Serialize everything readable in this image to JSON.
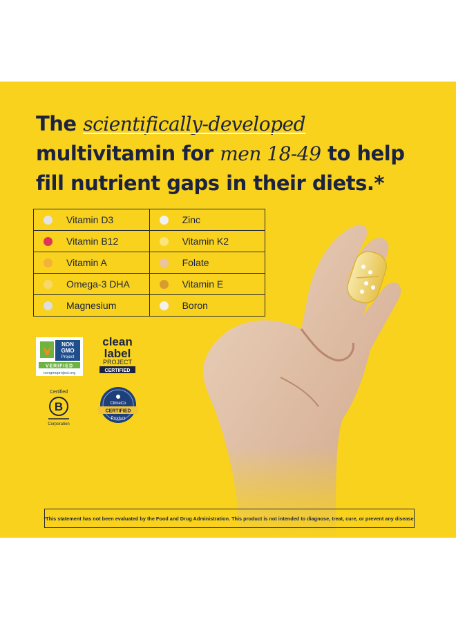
{
  "headline": {
    "line1_a": "The ",
    "line1_em": "scientifically-developed",
    "line2_a": "multivitamin for ",
    "line2_em": "men 18-49",
    "line2_b": " to help",
    "line3": "fill nutrient gaps in their diets.*"
  },
  "nutrients": [
    {
      "label": "Vitamin D3",
      "color": "#e4e4e8"
    },
    {
      "label": "Zinc",
      "color": "#f1f1f3"
    },
    {
      "label": "Vitamin B12",
      "color": "#e0355a"
    },
    {
      "label": "Vitamin K2",
      "color": "#fbe47a"
    },
    {
      "label": "Vitamin A",
      "color": "#f4b13c"
    },
    {
      "label": "Folate",
      "color": "#ebc2a4"
    },
    {
      "label": "Omega-3 DHA",
      "color": "#f9d86a"
    },
    {
      "label": "Vitamin E",
      "color": "#d89b2e"
    },
    {
      "label": "Magnesium",
      "color": "#dedee2"
    },
    {
      "label": "Boron",
      "color": "#f3f1ee"
    }
  ],
  "badges": {
    "nongmo": {
      "l1": "NON",
      "l2": "GMO",
      "l3": "Project",
      "l4": "VERIFIED",
      "l5": "nongmoproject.org"
    },
    "clean_label": {
      "l1": "clean",
      "l2": "label",
      "l3": "PROJECT",
      "l4": "CERTIFIED"
    },
    "bcorp": {
      "top": "Certified",
      "letter": "B",
      "bottom": "Corporation"
    },
    "climeco": {
      "brand": "ClimeCo",
      "status": "CERTIFIED",
      "kind": "Product"
    }
  },
  "disclaimer": "*This statement has not been evaluated by the Food and Drug Administration. This product is not intended to diagnose, treat, cure, or prevent any disease.",
  "colors": {
    "background": "#f8d21c",
    "text": "#1c2340"
  }
}
